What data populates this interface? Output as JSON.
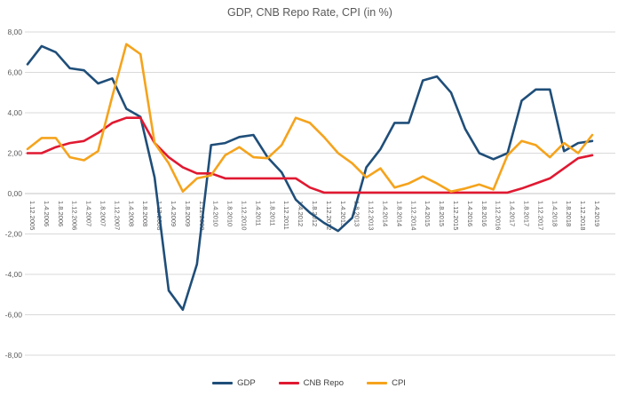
{
  "chart_data": {
    "type": "line",
    "title": "GDP, CNB Repo Rate, CPI (in %)",
    "ylim": [
      -8,
      8
    ],
    "y_tick_step": 2,
    "y_ticks": [
      "8,00",
      "6,00",
      "4,00",
      "2,00",
      "0,00",
      "-2,00",
      "-4,00",
      "-6,00",
      "-8,00"
    ],
    "grid": true,
    "legend_position": "bottom",
    "categories": [
      "1.12.2005",
      "1.4.2006",
      "1.8.2006",
      "1.12.2006",
      "1.4.2007",
      "1.8.2007",
      "1.12.2007",
      "1.4.2008",
      "1.8.2008",
      "1.12.2008",
      "1.4.2009",
      "1.8.2009",
      "1.12.2009",
      "1.4.2010",
      "1.8.2010",
      "1.12.2010",
      "1.4.2011",
      "1.8.2011",
      "1.12.2011",
      "1.4.2012",
      "1.8.2012",
      "1.12.2012",
      "1.4.2013",
      "1.8.2013",
      "1.12.2013",
      "1.4.2014",
      "1.8.2014",
      "1.12.2014",
      "1.4.2015",
      "1.8.2015",
      "1.12.2015",
      "1.4.2016",
      "1.8.2016",
      "1.12.2016",
      "1.4.2017",
      "1.8.2017",
      "1.12.2017",
      "1.4.2018",
      "1.8.2018",
      "1.12.2018",
      "1.4.2019"
    ],
    "series": [
      {
        "id": "gdp",
        "name": "GDP",
        "color": "#1f4e79",
        "values": [
          6.4,
          7.3,
          7.0,
          6.2,
          6.1,
          5.45,
          5.7,
          4.2,
          3.8,
          0.8,
          -4.8,
          -5.75,
          -3.5,
          2.4,
          2.5,
          2.8,
          2.9,
          1.8,
          1.05,
          -0.3,
          -0.95,
          -1.45,
          -1.85,
          -1.2,
          1.3,
          2.2,
          3.5,
          3.5,
          5.6,
          5.8,
          5.0,
          3.2,
          2.0,
          1.7,
          2.0,
          4.6,
          5.15,
          5.15,
          2.1,
          2.5,
          2.6
        ]
      },
      {
        "id": "cnb-repo",
        "name": "CNB Repo",
        "color": "#e01931",
        "values": [
          2.0,
          2.0,
          2.3,
          2.5,
          2.6,
          3.0,
          3.5,
          3.75,
          3.75,
          2.5,
          1.8,
          1.3,
          1.0,
          1.0,
          0.75,
          0.75,
          0.75,
          0.75,
          0.75,
          0.75,
          0.3,
          0.05,
          0.05,
          0.05,
          0.05,
          0.05,
          0.05,
          0.05,
          0.05,
          0.05,
          0.05,
          0.05,
          0.05,
          0.05,
          0.05,
          0.25,
          0.5,
          0.75,
          1.25,
          1.75,
          1.9
        ]
      },
      {
        "id": "cpi",
        "name": "CPI",
        "color": "#f5a31c",
        "values": [
          2.2,
          2.75,
          2.75,
          1.8,
          1.65,
          2.1,
          4.8,
          7.4,
          6.9,
          2.5,
          1.5,
          0.1,
          0.75,
          0.9,
          1.9,
          2.3,
          1.8,
          1.75,
          2.4,
          3.75,
          3.5,
          2.8,
          2.0,
          1.5,
          0.8,
          1.25,
          0.3,
          0.5,
          0.85,
          0.5,
          0.1,
          0.25,
          0.45,
          0.2,
          1.9,
          2.6,
          2.4,
          1.8,
          2.5,
          2.0,
          2.9
        ]
      }
    ]
  }
}
